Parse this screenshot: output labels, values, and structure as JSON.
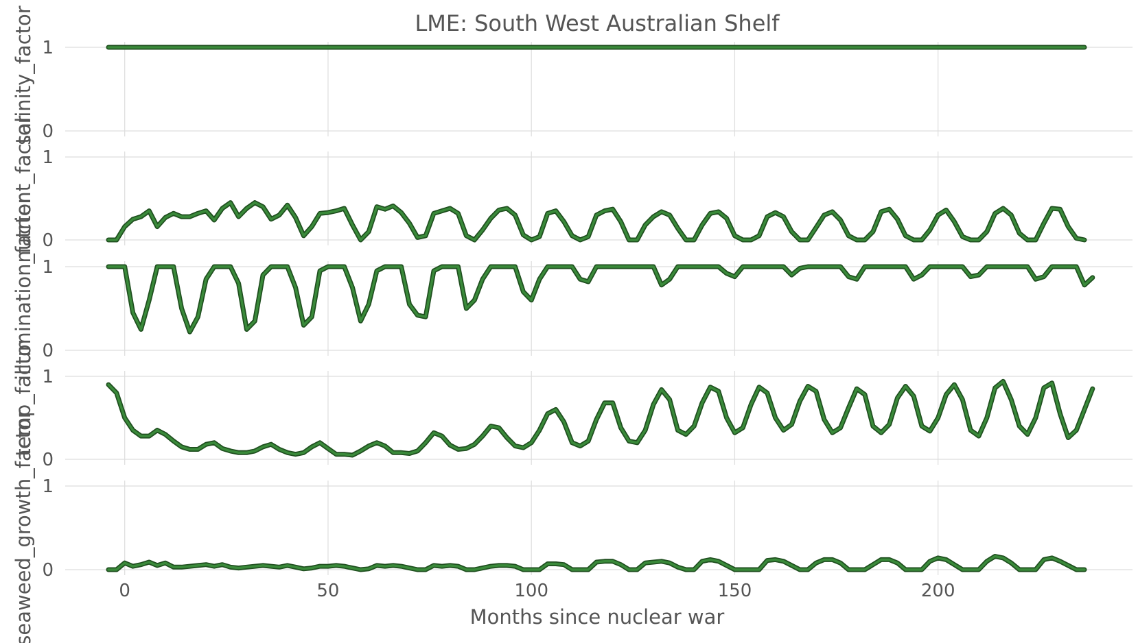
{
  "chart_data": {
    "type": "line",
    "title": "LME: South West Australian Shelf",
    "xlabel": "Months since nuclear war",
    "xlim": [
      -4,
      236
    ],
    "xticks": [
      0,
      50,
      100,
      150,
      200
    ],
    "grid": true,
    "color": "#3a8a3a",
    "panels": [
      {
        "ylabel": "salinity_factor",
        "ylim": [
          0,
          1
        ],
        "yticks": [
          0,
          1
        ],
        "x_start": -4,
        "x_step": 2,
        "values": [
          1,
          1,
          1,
          1,
          1,
          1,
          1,
          1,
          1,
          1,
          1,
          1,
          1,
          1,
          1,
          1,
          1,
          1,
          1,
          1,
          1,
          1,
          1,
          1,
          1,
          1,
          1,
          1,
          1,
          1,
          1,
          1,
          1,
          1,
          1,
          1,
          1,
          1,
          1,
          1,
          1,
          1,
          1,
          1,
          1,
          1,
          1,
          1,
          1,
          1,
          1,
          1,
          1,
          1,
          1,
          1,
          1,
          1,
          1,
          1,
          1,
          1,
          1,
          1,
          1,
          1,
          1,
          1,
          1,
          1,
          1,
          1,
          1,
          1,
          1,
          1,
          1,
          1,
          1,
          1,
          1,
          1,
          1,
          1,
          1,
          1,
          1,
          1,
          1,
          1,
          1,
          1,
          1,
          1,
          1,
          1,
          1,
          1,
          1,
          1,
          1,
          1,
          1,
          1,
          1,
          1,
          1,
          1,
          1,
          1,
          1,
          1,
          1,
          1,
          1,
          1,
          1,
          1,
          1,
          1,
          1
        ]
      },
      {
        "ylabel": "nutrient_factor",
        "ylim": [
          0,
          1
        ],
        "yticks": [
          0,
          1
        ],
        "x_start": -4,
        "x_step": 2,
        "values": [
          0,
          0,
          0.16,
          0.25,
          0.28,
          0.35,
          0.16,
          0.27,
          0.32,
          0.28,
          0.28,
          0.32,
          0.35,
          0.24,
          0.38,
          0.45,
          0.28,
          0.38,
          0.45,
          0.4,
          0.25,
          0.3,
          0.42,
          0.27,
          0.05,
          0.16,
          0.32,
          0.33,
          0.35,
          0.38,
          0.18,
          0,
          0.1,
          0.4,
          0.37,
          0.41,
          0.33,
          0.2,
          0.03,
          0.05,
          0.32,
          0.35,
          0.38,
          0.32,
          0.05,
          0,
          0.12,
          0.26,
          0.36,
          0.38,
          0.3,
          0.06,
          0,
          0.04,
          0.32,
          0.35,
          0.22,
          0.05,
          0,
          0.04,
          0.3,
          0.35,
          0.37,
          0.22,
          0,
          0,
          0.18,
          0.28,
          0.34,
          0.3,
          0.14,
          0,
          0,
          0.18,
          0.32,
          0.34,
          0.26,
          0.05,
          0,
          0,
          0.05,
          0.28,
          0.33,
          0.28,
          0.1,
          0,
          0,
          0.15,
          0.3,
          0.34,
          0.24,
          0.05,
          0,
          0,
          0.1,
          0.34,
          0.37,
          0.25,
          0.05,
          0,
          0,
          0.12,
          0.3,
          0.36,
          0.22,
          0.04,
          0,
          0,
          0.1,
          0.32,
          0.38,
          0.3,
          0.08,
          0,
          0,
          0.2,
          0.38,
          0.37,
          0.16,
          0.02,
          0
        ]
      },
      {
        "ylabel": "illumination_factor",
        "ylim": [
          0,
          1
        ],
        "yticks": [
          0,
          1
        ],
        "x_start": -4,
        "x_step": 2,
        "values": [
          1,
          1,
          1,
          0.45,
          0.25,
          0.6,
          1,
          1,
          1,
          0.5,
          0.22,
          0.4,
          0.85,
          1,
          1,
          1,
          0.8,
          0.25,
          0.35,
          0.9,
          1,
          1,
          1,
          0.75,
          0.3,
          0.4,
          0.95,
          1,
          1,
          1,
          0.75,
          0.35,
          0.55,
          0.95,
          1,
          1,
          1,
          0.55,
          0.42,
          0.4,
          0.95,
          1,
          1,
          1,
          0.5,
          0.6,
          0.85,
          1,
          1,
          1,
          1,
          0.7,
          0.6,
          0.85,
          1,
          1,
          1,
          1,
          0.85,
          0.82,
          1,
          1,
          1,
          1,
          1,
          1,
          1,
          1,
          0.78,
          0.85,
          1,
          1,
          1,
          1,
          1,
          1,
          0.92,
          0.88,
          1,
          1,
          1,
          1,
          1,
          1,
          0.9,
          0.98,
          1,
          1,
          1,
          1,
          1,
          0.88,
          0.85,
          1,
          1,
          1,
          1,
          1,
          1,
          0.85,
          0.9,
          1,
          1,
          1,
          1,
          1,
          0.88,
          0.9,
          1,
          1,
          1,
          1,
          1,
          1,
          0.85,
          0.88,
          1,
          1,
          1,
          1,
          0.78,
          0.87
        ]
      },
      {
        "ylabel": "temp_factor",
        "ylim": [
          0,
          1
        ],
        "yticks": [
          0,
          1
        ],
        "x_start": -4,
        "x_step": 2,
        "values": [
          0.9,
          0.8,
          0.5,
          0.35,
          0.28,
          0.28,
          0.35,
          0.3,
          0.22,
          0.15,
          0.12,
          0.12,
          0.18,
          0.2,
          0.13,
          0.1,
          0.08,
          0.08,
          0.1,
          0.15,
          0.18,
          0.12,
          0.08,
          0.06,
          0.08,
          0.15,
          0.2,
          0.13,
          0.06,
          0.06,
          0.05,
          0.1,
          0.16,
          0.2,
          0.16,
          0.08,
          0.08,
          0.07,
          0.1,
          0.2,
          0.32,
          0.28,
          0.17,
          0.12,
          0.13,
          0.18,
          0.28,
          0.4,
          0.38,
          0.26,
          0.16,
          0.14,
          0.2,
          0.35,
          0.55,
          0.6,
          0.45,
          0.2,
          0.16,
          0.22,
          0.48,
          0.68,
          0.68,
          0.38,
          0.22,
          0.2,
          0.35,
          0.66,
          0.84,
          0.72,
          0.35,
          0.3,
          0.4,
          0.68,
          0.87,
          0.82,
          0.5,
          0.32,
          0.38,
          0.66,
          0.87,
          0.8,
          0.5,
          0.35,
          0.42,
          0.7,
          0.88,
          0.82,
          0.48,
          0.32,
          0.38,
          0.62,
          0.85,
          0.78,
          0.4,
          0.32,
          0.42,
          0.74,
          0.88,
          0.76,
          0.4,
          0.34,
          0.5,
          0.78,
          0.9,
          0.72,
          0.35,
          0.28,
          0.5,
          0.86,
          0.94,
          0.72,
          0.4,
          0.3,
          0.5,
          0.86,
          0.92,
          0.55,
          0.26,
          0.35,
          0.6,
          0.85
        ]
      },
      {
        "ylabel": "seaweed_growth_factor",
        "ylim": [
          0,
          1
        ],
        "yticks": [
          0,
          1
        ],
        "x_start": -4,
        "x_step": 2,
        "values": [
          0,
          0,
          0.08,
          0.04,
          0.06,
          0.09,
          0.05,
          0.08,
          0.03,
          0.03,
          0.04,
          0.05,
          0.06,
          0.04,
          0.06,
          0.03,
          0.02,
          0.03,
          0.04,
          0.05,
          0.04,
          0.03,
          0.05,
          0.03,
          0.01,
          0.02,
          0.04,
          0.04,
          0.05,
          0.04,
          0.02,
          0,
          0.01,
          0.05,
          0.04,
          0.05,
          0.04,
          0.02,
          0,
          0,
          0.05,
          0.04,
          0.05,
          0.04,
          0,
          0,
          0.02,
          0.04,
          0.05,
          0.05,
          0.04,
          0,
          0,
          0,
          0.07,
          0.07,
          0.06,
          0,
          0,
          0,
          0.09,
          0.1,
          0.1,
          0.06,
          0,
          0,
          0.08,
          0.09,
          0.1,
          0.08,
          0.03,
          0,
          0,
          0.1,
          0.12,
          0.1,
          0.05,
          0,
          0,
          0,
          0,
          0.11,
          0.12,
          0.1,
          0.05,
          0,
          0,
          0.08,
          0.12,
          0.12,
          0.08,
          0,
          0,
          0,
          0.06,
          0.12,
          0.12,
          0.08,
          0,
          0,
          0,
          0.1,
          0.14,
          0.12,
          0.06,
          0,
          0,
          0,
          0.1,
          0.16,
          0.14,
          0.08,
          0,
          0,
          0,
          0.12,
          0.14,
          0.1,
          0.05,
          0,
          0
        ]
      }
    ]
  }
}
